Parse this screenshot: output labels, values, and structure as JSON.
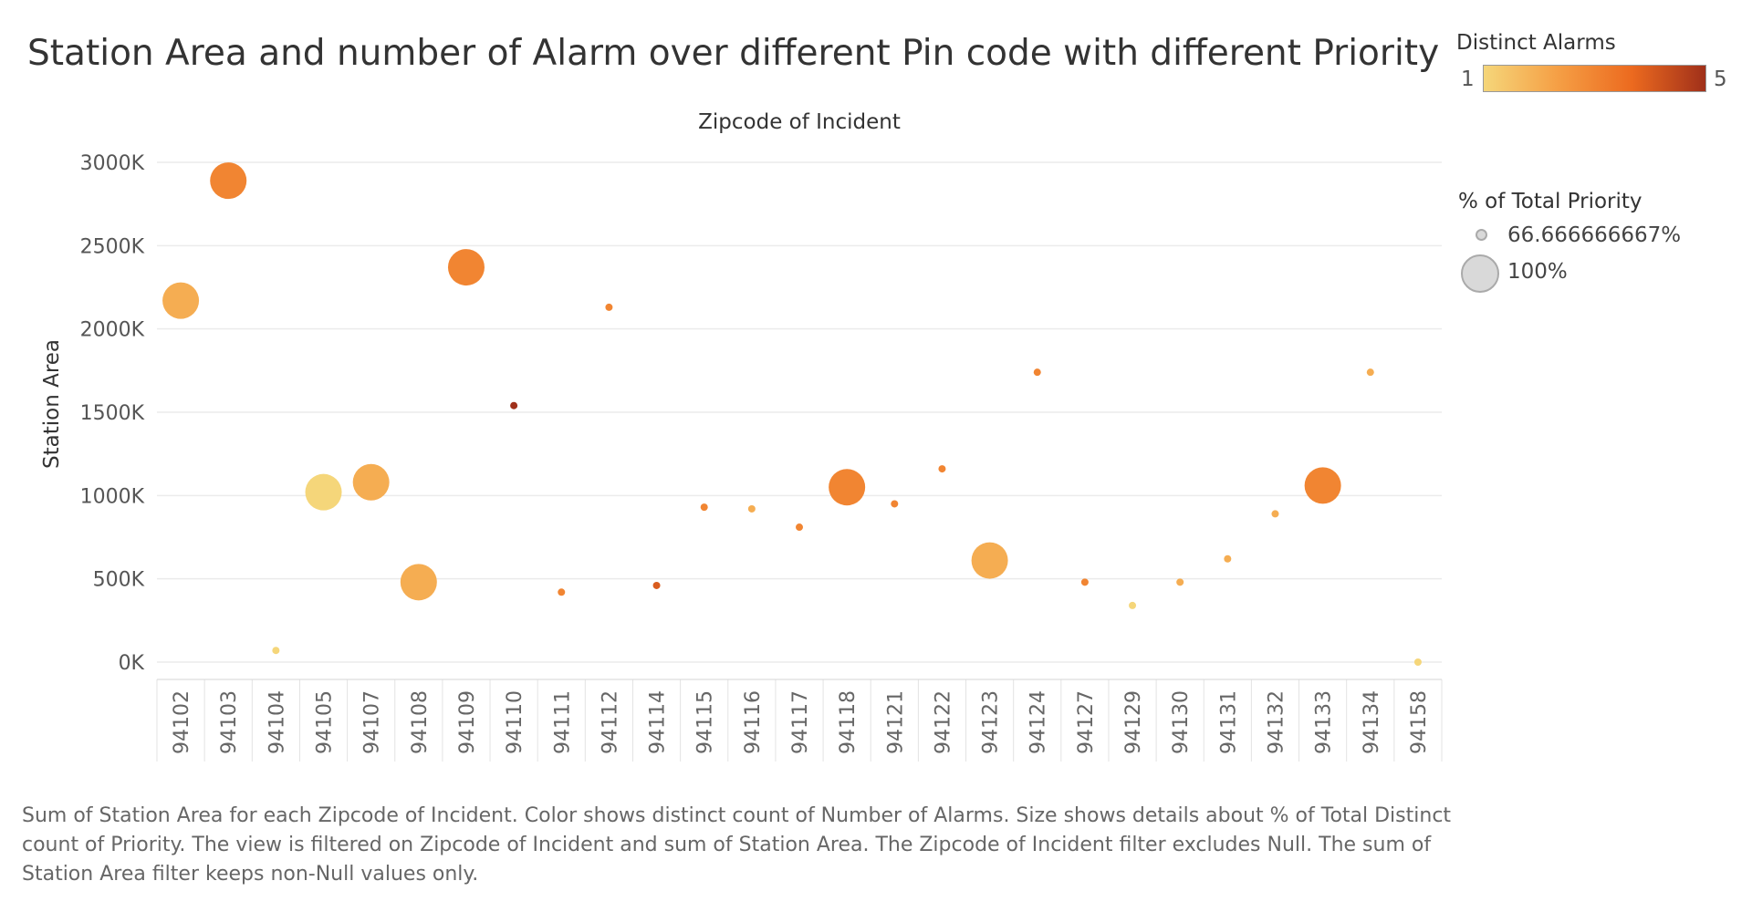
{
  "title": "Station Area and number of Alarm over different Pin code with different Priority",
  "legend_color": {
    "title": "Distinct Alarms",
    "min_label": "1",
    "max_label": "5",
    "colors": [
      "#f5d67a",
      "#f59f45",
      "#ec6a1f",
      "#a0301a"
    ]
  },
  "legend_size": {
    "title": "% of Total Priority",
    "items": [
      {
        "label": "66.666666667%"
      },
      {
        "label": "100%"
      }
    ]
  },
  "caption": "Sum of Station Area for each Zipcode of Incident.  Color shows distinct count of Number of Alarms.  Size shows details about % of Total Distinct count of Priority. The view is filtered on Zipcode of Incident and sum of Station Area. The Zipcode of Incident filter excludes Null. The sum of Station Area filter keeps non-Null values only.",
  "chart_data": {
    "type": "scatter",
    "title": "Station Area and number of Alarm over different Pin code with different Priority",
    "xlabel": "Zipcode of Incident",
    "ylabel": "Station Area",
    "x_axis_position": "top",
    "ylim": [
      0,
      3000
    ],
    "y_ticks": [
      0,
      500,
      1000,
      1500,
      2000,
      2500,
      3000
    ],
    "y_tick_labels": [
      "0K",
      "500K",
      "1000K",
      "1500K",
      "2000K",
      "2500K",
      "3000K"
    ],
    "y_unit": "K",
    "grid": true,
    "categories": [
      "94102",
      "94103",
      "94104",
      "94105",
      "94107",
      "94108",
      "94109",
      "94110",
      "94111",
      "94112",
      "94114",
      "94115",
      "94116",
      "94117",
      "94118",
      "94121",
      "94122",
      "94123",
      "94124",
      "94127",
      "94129",
      "94130",
      "94131",
      "94132",
      "94133",
      "94134",
      "94158"
    ],
    "points": [
      {
        "x": "94102",
        "y": 2170,
        "distinct_alarms": 2,
        "pct_priority": 100
      },
      {
        "x": "94103",
        "y": 2890,
        "distinct_alarms": 3,
        "pct_priority": 100
      },
      {
        "x": "94104",
        "y": 70,
        "distinct_alarms": 1,
        "pct_priority": 66.67
      },
      {
        "x": "94105",
        "y": 1020,
        "distinct_alarms": 1,
        "pct_priority": 100
      },
      {
        "x": "94107",
        "y": 1080,
        "distinct_alarms": 2,
        "pct_priority": 100
      },
      {
        "x": "94108",
        "y": 480,
        "distinct_alarms": 2,
        "pct_priority": 100
      },
      {
        "x": "94109",
        "y": 2370,
        "distinct_alarms": 3,
        "pct_priority": 100
      },
      {
        "x": "94110",
        "y": 1540,
        "distinct_alarms": 5,
        "pct_priority": 66.67
      },
      {
        "x": "94111",
        "y": 420,
        "distinct_alarms": 3,
        "pct_priority": 66.67
      },
      {
        "x": "94112",
        "y": 2130,
        "distinct_alarms": 3,
        "pct_priority": 66.67
      },
      {
        "x": "94114",
        "y": 460,
        "distinct_alarms": 4,
        "pct_priority": 66.67
      },
      {
        "x": "94115",
        "y": 930,
        "distinct_alarms": 3,
        "pct_priority": 66.67
      },
      {
        "x": "94116",
        "y": 920,
        "distinct_alarms": 2,
        "pct_priority": 66.67
      },
      {
        "x": "94117",
        "y": 810,
        "distinct_alarms": 3,
        "pct_priority": 66.67
      },
      {
        "x": "94118",
        "y": 1050,
        "distinct_alarms": 3,
        "pct_priority": 100
      },
      {
        "x": "94121",
        "y": 950,
        "distinct_alarms": 3,
        "pct_priority": 66.67
      },
      {
        "x": "94122",
        "y": 1160,
        "distinct_alarms": 3,
        "pct_priority": 66.67
      },
      {
        "x": "94123",
        "y": 610,
        "distinct_alarms": 2,
        "pct_priority": 100
      },
      {
        "x": "94124",
        "y": 1740,
        "distinct_alarms": 3,
        "pct_priority": 66.67
      },
      {
        "x": "94127",
        "y": 480,
        "distinct_alarms": 3,
        "pct_priority": 66.67
      },
      {
        "x": "94129",
        "y": 340,
        "distinct_alarms": 1,
        "pct_priority": 66.67
      },
      {
        "x": "94130",
        "y": 480,
        "distinct_alarms": 2,
        "pct_priority": 66.67
      },
      {
        "x": "94131",
        "y": 620,
        "distinct_alarms": 2,
        "pct_priority": 66.67
      },
      {
        "x": "94132",
        "y": 890,
        "distinct_alarms": 2,
        "pct_priority": 66.67
      },
      {
        "x": "94133",
        "y": 1060,
        "distinct_alarms": 3,
        "pct_priority": 100
      },
      {
        "x": "94134",
        "y": 1740,
        "distinct_alarms": 2,
        "pct_priority": 66.67
      },
      {
        "x": "94158",
        "y": 0,
        "distinct_alarms": 1,
        "pct_priority": 66.67
      }
    ],
    "color_scale": {
      "field": "distinct_alarms",
      "min": 1,
      "max": 5
    },
    "size_scale": {
      "field": "pct_priority"
    },
    "legend_placement": "right"
  }
}
